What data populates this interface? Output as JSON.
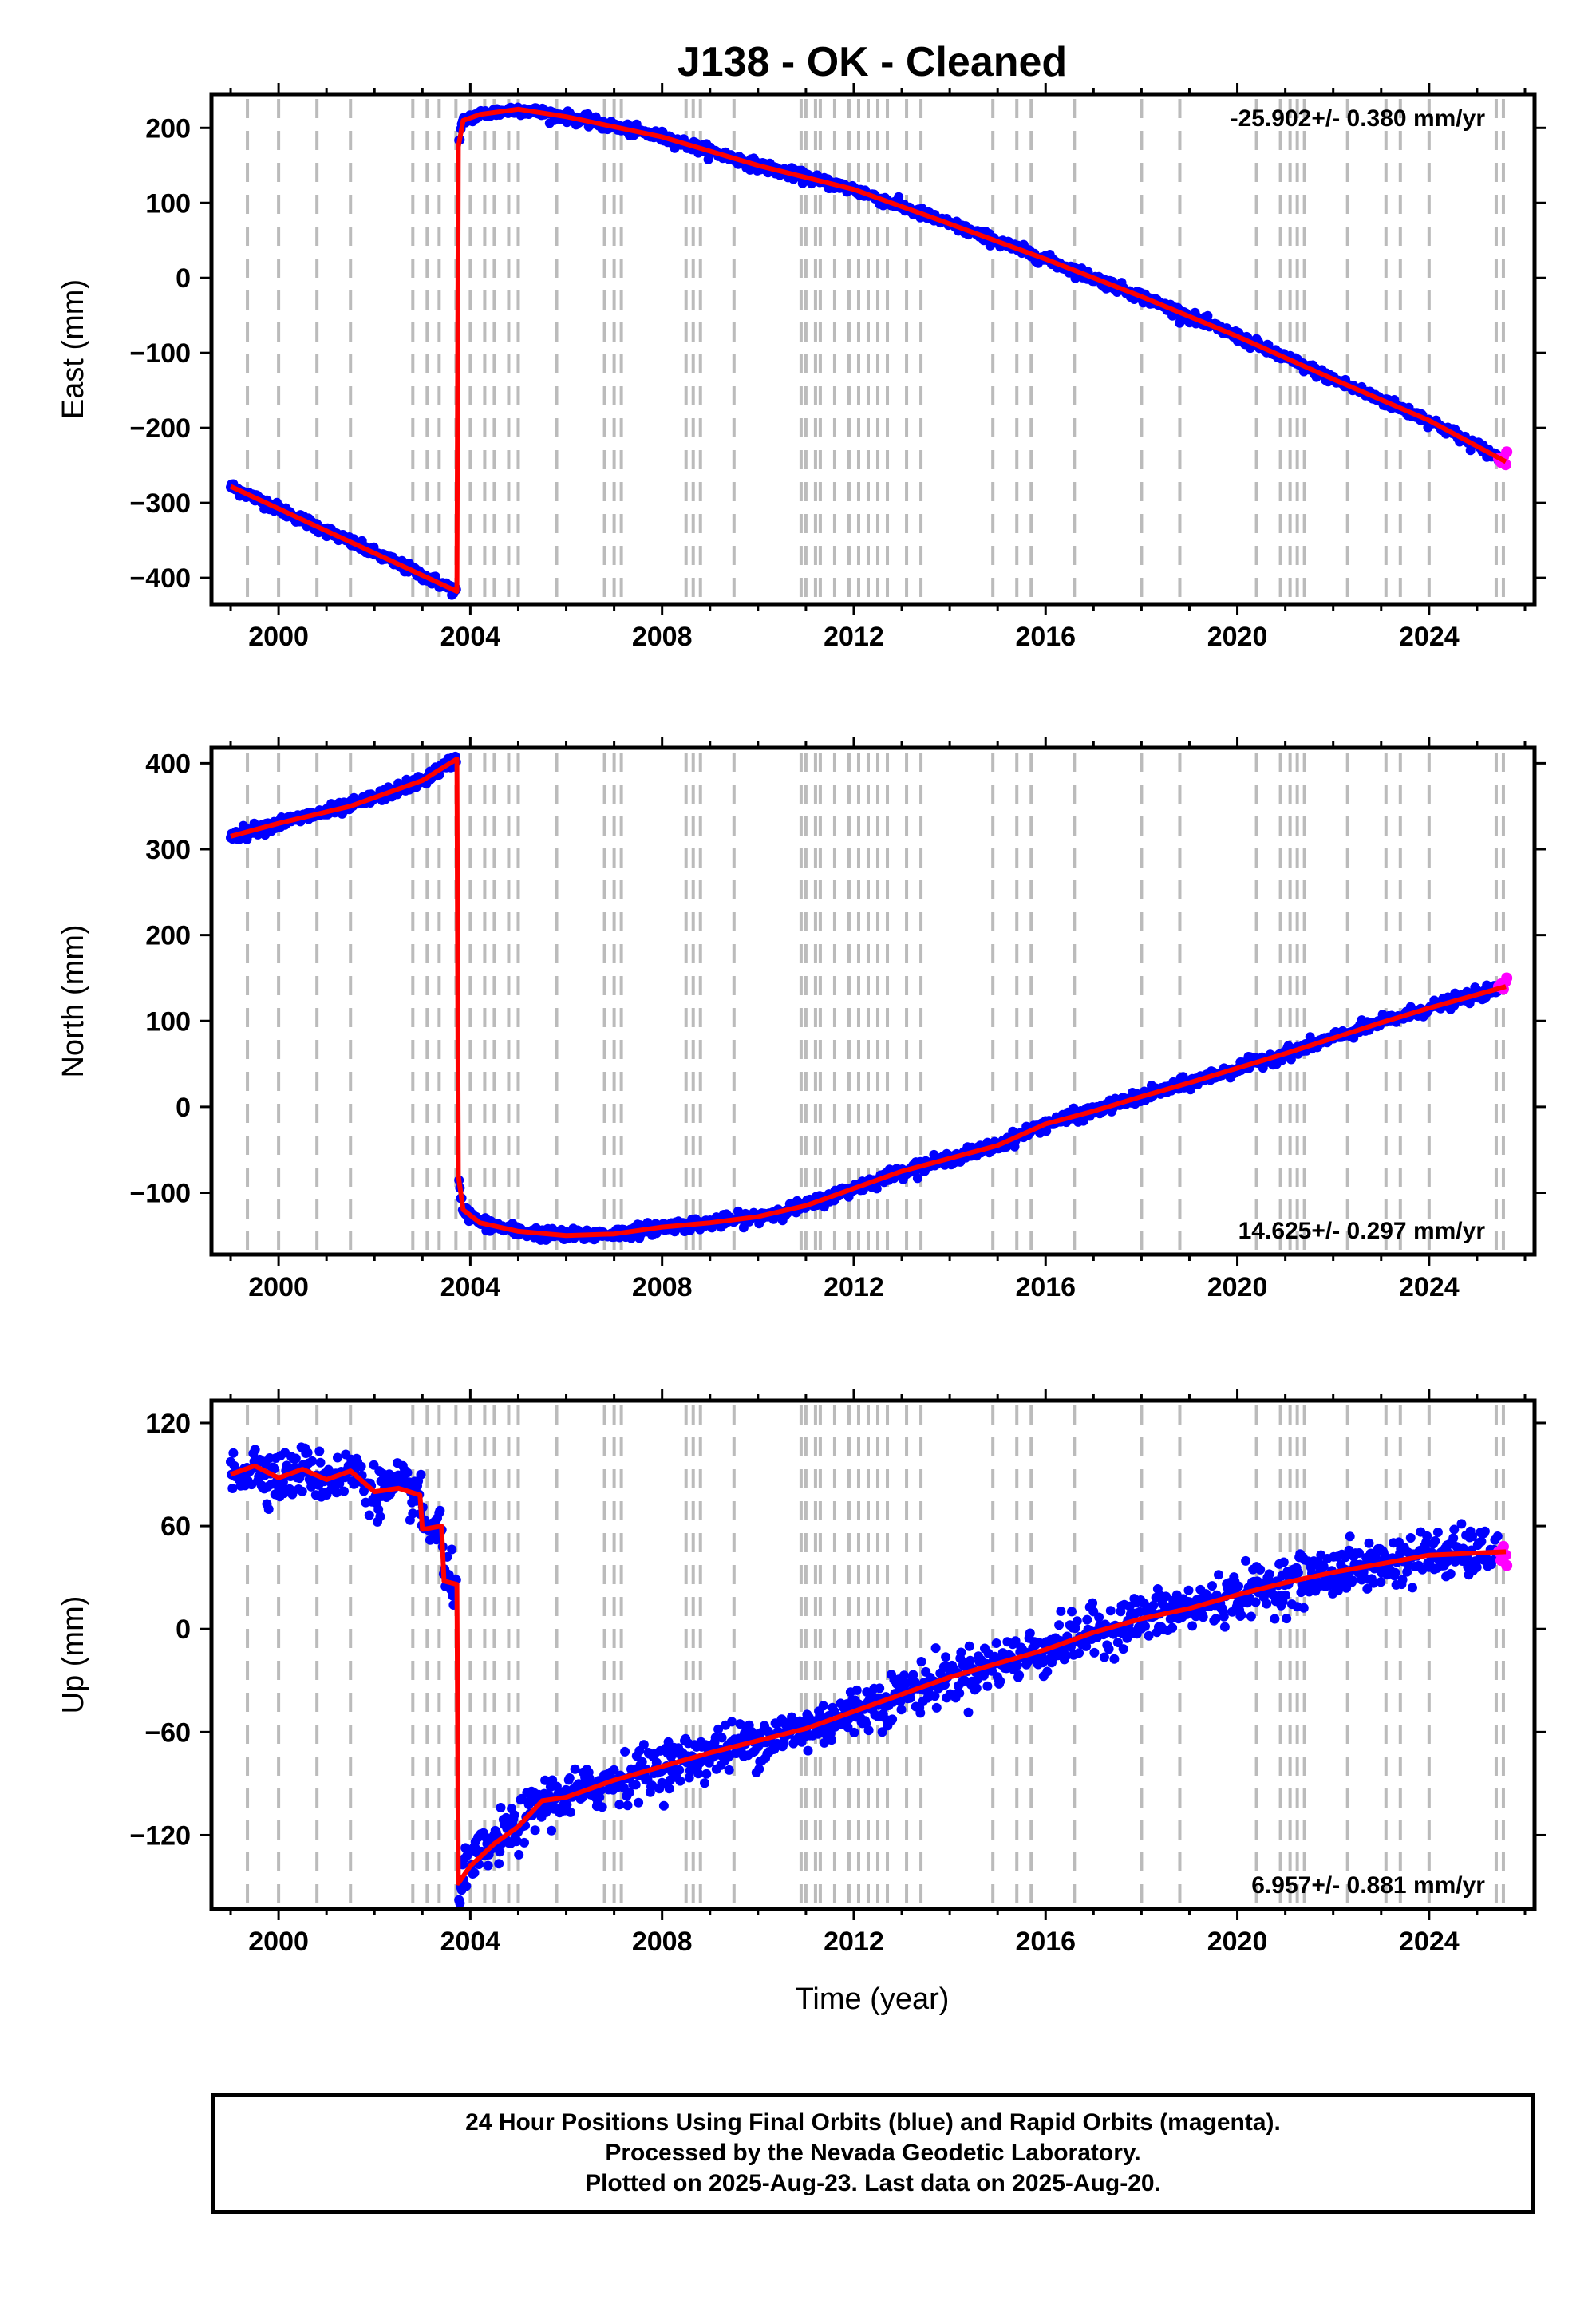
{
  "chart_data": {
    "title": "J138  - OK - Cleaned",
    "xlabel": "Time (year)",
    "xlim": [
      1998.6,
      2026.2
    ],
    "x_ticks": [
      2000,
      2004,
      2008,
      2012,
      2016,
      2020,
      2024
    ],
    "series_colors": {
      "final_orbits": "#0000ff",
      "rapid_orbits": "#ff00ff",
      "model": "#ff0000",
      "event_lines": "#bbbbbb"
    },
    "event_epochs": [
      1999.35,
      2000.0,
      2000.8,
      2001.5,
      2002.8,
      2003.1,
      2003.35,
      2003.7,
      2004.0,
      2004.3,
      2004.5,
      2004.8,
      2005.0,
      2005.8,
      2006.8,
      2007.0,
      2007.15,
      2008.5,
      2008.65,
      2008.8,
      2009.5,
      2010.9,
      2011.0,
      2011.2,
      2011.3,
      2011.6,
      2011.9,
      2012.1,
      2012.3,
      2012.5,
      2012.7,
      2013.1,
      2013.4,
      2014.9,
      2015.4,
      2015.7,
      2016.6,
      2018.0,
      2018.8,
      2020.4,
      2020.9,
      2021.1,
      2021.25,
      2021.4,
      2022.3,
      2023.1,
      2023.4,
      2024.0,
      2025.4,
      2025.55
    ],
    "panels": [
      {
        "type": "scatter",
        "ylabel": "East (mm)",
        "ylim": [
          -435,
          245
        ],
        "y_ticks": [
          200,
          100,
          0,
          -100,
          -200,
          -300,
          -400
        ],
        "y_tick_labels": [
          "200",
          "100",
          "0",
          "−100",
          "−200",
          "−300",
          "−400"
        ],
        "rate_text": "-25.902+/- 0.380 mm/yr",
        "rate_position": "top-right",
        "noise_mm": 3.5,
        "model_curve": [
          [
            1999.0,
            -278
          ],
          [
            2003.72,
            -418
          ],
          [
            2003.75,
            175
          ],
          [
            2003.85,
            210
          ],
          [
            2004.2,
            218
          ],
          [
            2005.0,
            225
          ],
          [
            2006.0,
            215
          ],
          [
            2008.0,
            188
          ],
          [
            2010.0,
            150
          ],
          [
            2012.0,
            118
          ],
          [
            2014.0,
            72
          ],
          [
            2016.0,
            25
          ],
          [
            2018.0,
            -25
          ],
          [
            2020.0,
            -78
          ],
          [
            2022.0,
            -135
          ],
          [
            2024.0,
            -190
          ],
          [
            2025.6,
            -245
          ]
        ],
        "rapid_points": [
          [
            2025.45,
            -241
          ],
          [
            2025.5,
            -246
          ],
          [
            2025.55,
            -239
          ],
          [
            2025.6,
            -249
          ],
          [
            2025.62,
            -232
          ]
        ]
      },
      {
        "type": "scatter",
        "ylabel": "North (mm)",
        "ylim": [
          -172,
          418
        ],
        "y_ticks": [
          400,
          300,
          200,
          100,
          0,
          -100
        ],
        "y_tick_labels": [
          "400",
          "300",
          "200",
          "100",
          "0",
          "−100"
        ],
        "rate_text": "14.625+/- 0.297 mm/yr",
        "rate_position": "bottom-right",
        "noise_mm": 3.5,
        "model_curve": [
          [
            1999.0,
            315
          ],
          [
            2000.0,
            330
          ],
          [
            2001.5,
            350
          ],
          [
            2003.0,
            380
          ],
          [
            2003.72,
            405
          ],
          [
            2003.75,
            -80
          ],
          [
            2003.85,
            -120
          ],
          [
            2004.2,
            -135
          ],
          [
            2005.0,
            -145
          ],
          [
            2006.0,
            -150
          ],
          [
            2007.0,
            -148
          ],
          [
            2008.0,
            -140
          ],
          [
            2009.0,
            -135
          ],
          [
            2010.0,
            -128
          ],
          [
            2011.0,
            -115
          ],
          [
            2012.0,
            -95
          ],
          [
            2013.0,
            -75
          ],
          [
            2014.0,
            -60
          ],
          [
            2015.0,
            -45
          ],
          [
            2016.0,
            -20
          ],
          [
            2017.0,
            -5
          ],
          [
            2018.0,
            12
          ],
          [
            2019.0,
            28
          ],
          [
            2020.0,
            45
          ],
          [
            2021.0,
            62
          ],
          [
            2022.0,
            80
          ],
          [
            2023.0,
            98
          ],
          [
            2024.0,
            115
          ],
          [
            2025.6,
            140
          ]
        ],
        "rapid_points": [
          [
            2025.45,
            140
          ],
          [
            2025.5,
            143
          ],
          [
            2025.55,
            137
          ],
          [
            2025.6,
            146
          ],
          [
            2025.62,
            150
          ]
        ]
      },
      {
        "type": "scatter",
        "ylabel": "Up (mm)",
        "ylim": [
          -163,
          133
        ],
        "y_ticks": [
          120,
          60,
          0,
          -60,
          -120
        ],
        "y_tick_labels": [
          "120",
          "60",
          "0",
          "−60",
          "−120"
        ],
        "rate_text": "6.957+/- 0.881 mm/yr",
        "rate_position": "bottom-right",
        "noise_mm": 7,
        "model_curve": [
          [
            1999.0,
            90
          ],
          [
            1999.5,
            95
          ],
          [
            2000.0,
            88
          ],
          [
            2000.5,
            93
          ],
          [
            2001.0,
            87
          ],
          [
            2001.5,
            92
          ],
          [
            2002.0,
            80
          ],
          [
            2002.5,
            82
          ],
          [
            2002.95,
            78
          ],
          [
            2003.0,
            58
          ],
          [
            2003.4,
            60
          ],
          [
            2003.45,
            28
          ],
          [
            2003.72,
            26
          ],
          [
            2003.75,
            -148
          ],
          [
            2004.0,
            -138
          ],
          [
            2004.5,
            -125
          ],
          [
            2005.0,
            -115
          ],
          [
            2005.5,
            -100
          ],
          [
            2006.0,
            -98
          ],
          [
            2007.0,
            -88
          ],
          [
            2008.0,
            -80
          ],
          [
            2009.0,
            -72
          ],
          [
            2010.0,
            -65
          ],
          [
            2011.0,
            -58
          ],
          [
            2012.0,
            -48
          ],
          [
            2013.0,
            -38
          ],
          [
            2014.0,
            -28
          ],
          [
            2015.0,
            -20
          ],
          [
            2016.0,
            -12
          ],
          [
            2017.0,
            -2
          ],
          [
            2018.0,
            6
          ],
          [
            2019.0,
            12
          ],
          [
            2020.0,
            20
          ],
          [
            2021.0,
            27
          ],
          [
            2022.0,
            33
          ],
          [
            2023.0,
            38
          ],
          [
            2024.0,
            43
          ],
          [
            2025.6,
            45
          ]
        ],
        "rapid_points": [
          [
            2025.45,
            45
          ],
          [
            2025.5,
            40
          ],
          [
            2025.55,
            48
          ],
          [
            2025.6,
            43
          ],
          [
            2025.62,
            37
          ]
        ]
      }
    ]
  },
  "footer": {
    "line1": "24 Hour Positions Using Final Orbits (blue) and Rapid Orbits (magenta).",
    "line2": "Processed by the Nevada Geodetic Laboratory.",
    "line3": "Plotted on 2025-Aug-23. Last data on 2025-Aug-20."
  }
}
